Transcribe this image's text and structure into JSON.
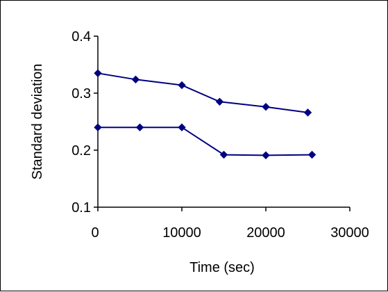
{
  "chart_data": {
    "type": "line",
    "title": "",
    "xlabel": "Time (sec)",
    "ylabel": "Standard deviation",
    "xlim": [
      0,
      30000
    ],
    "ylim": [
      0.1,
      0.4
    ],
    "x_ticks": [
      0,
      10000,
      20000,
      30000
    ],
    "y_ticks": [
      0.1,
      0.2,
      0.3,
      0.4
    ],
    "x_tick_labels": [
      "0",
      "10000",
      "20000",
      "30000"
    ],
    "y_tick_labels": [
      "0.1",
      "0.2",
      "0.3",
      "0.4"
    ],
    "grid": false,
    "legend": "none",
    "series": [
      {
        "color": "#000080",
        "points": [
          [
            0,
            0.335
          ],
          [
            4500,
            0.324
          ],
          [
            10000,
            0.314
          ],
          [
            14500,
            0.285
          ],
          [
            20000,
            0.276
          ],
          [
            25000,
            0.266
          ]
        ]
      },
      {
        "color": "#000080",
        "points": [
          [
            0,
            0.24
          ],
          [
            5000,
            0.24
          ],
          [
            10000,
            0.24
          ],
          [
            15000,
            0.192
          ],
          [
            20000,
            0.191
          ],
          [
            25500,
            0.192
          ]
        ]
      }
    ]
  }
}
